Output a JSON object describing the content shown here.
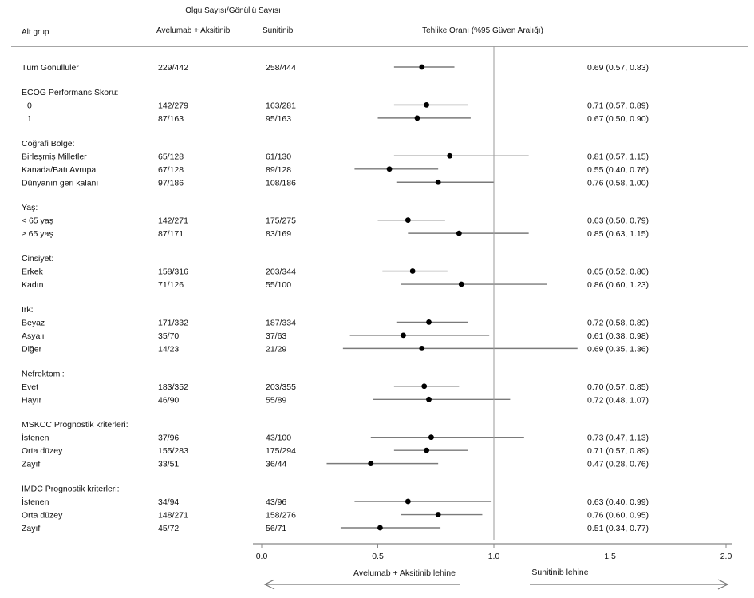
{
  "header": {
    "supertitle": "Olgu Sayısı/Gönüllü Sayısı",
    "col_subgroup": "Alt grup",
    "col_arm1": "Avelumab + Aksitinib",
    "col_arm2": "Sunitinib",
    "col_hr": "Tehlike Oranı (%95 Güven Aralığı)"
  },
  "favor_left": "Avelumab + Aksitinib lehine",
  "favor_right": "Sunitinib lehine",
  "chart_data": {
    "type": "forest",
    "title": "",
    "xlim": [
      0.0,
      2.0
    ],
    "reference_line": 1.0,
    "x_ticks": [
      "0.0",
      "0.5",
      "1.0",
      "1.5",
      "2.0"
    ],
    "x_tick_values": [
      0.0,
      0.5,
      1.0,
      1.5,
      2.0
    ],
    "rows": [
      {
        "kind": "row",
        "label": "Tüm Gönüllüler",
        "arm1": "229/442",
        "arm2": "258/444",
        "hr": 0.69,
        "lo": 0.57,
        "hi": 0.83,
        "text": "0.69 (0.57, 0.83)"
      },
      {
        "kind": "header",
        "label": "ECOG Performans Skoru:"
      },
      {
        "kind": "row",
        "label": "0",
        "indent": true,
        "arm1": "142/279",
        "arm2": "163/281",
        "hr": 0.71,
        "lo": 0.57,
        "hi": 0.89,
        "text": "0.71 (0.57, 0.89)"
      },
      {
        "kind": "row",
        "label": "1",
        "indent": true,
        "arm1": "87/163",
        "arm2": "95/163",
        "hr": 0.67,
        "lo": 0.5,
        "hi": 0.9,
        "text": "0.67 (0.50, 0.90)"
      },
      {
        "kind": "header",
        "label": "Coğrafi Bölge:"
      },
      {
        "kind": "row",
        "label": "Birleşmiş Milletler",
        "arm1": "65/128",
        "arm2": "61/130",
        "hr": 0.81,
        "lo": 0.57,
        "hi": 1.15,
        "text": "0.81 (0.57, 1.15)"
      },
      {
        "kind": "row",
        "label": "Kanada/Batı Avrupa",
        "arm1": "67/128",
        "arm2": "89/128",
        "hr": 0.55,
        "lo": 0.4,
        "hi": 0.76,
        "text": "0.55 (0.40, 0.76)"
      },
      {
        "kind": "row",
        "label": "Dünyanın geri kalanı",
        "arm1": "97/186",
        "arm2": "108/186",
        "hr": 0.76,
        "lo": 0.58,
        "hi": 1.0,
        "text": "0.76 (0.58, 1.00)"
      },
      {
        "kind": "header",
        "label": "Yaş:"
      },
      {
        "kind": "row",
        "label": "< 65 yaş",
        "arm1": "142/271",
        "arm2": "175/275",
        "hr": 0.63,
        "lo": 0.5,
        "hi": 0.79,
        "text": "0.63 (0.50, 0.79)"
      },
      {
        "kind": "row",
        "label": "≥ 65 yaş",
        "arm1": "87/171",
        "arm2": "83/169",
        "hr": 0.85,
        "lo": 0.63,
        "hi": 1.15,
        "text": "0.85 (0.63, 1.15)"
      },
      {
        "kind": "header",
        "label": "Cinsiyet:"
      },
      {
        "kind": "row",
        "label": "Erkek",
        "arm1": "158/316",
        "arm2": "203/344",
        "hr": 0.65,
        "lo": 0.52,
        "hi": 0.8,
        "text": "0.65 (0.52, 0.80)"
      },
      {
        "kind": "row",
        "label": "Kadın",
        "arm1": "71/126",
        "arm2": "55/100",
        "hr": 0.86,
        "lo": 0.6,
        "hi": 1.23,
        "text": "0.86 (0.60, 1.23)"
      },
      {
        "kind": "header",
        "label": "Irk:"
      },
      {
        "kind": "row",
        "label": "Beyaz",
        "arm1": "171/332",
        "arm2": "187/334",
        "hr": 0.72,
        "lo": 0.58,
        "hi": 0.89,
        "text": "0.72 (0.58, 0.89)"
      },
      {
        "kind": "row",
        "label": "Asyalı",
        "arm1": "35/70",
        "arm2": "37/63",
        "hr": 0.61,
        "lo": 0.38,
        "hi": 0.98,
        "text": "0.61 (0.38, 0.98)"
      },
      {
        "kind": "row",
        "label": "Diğer",
        "arm1": "14/23",
        "arm2": "21/29",
        "hr": 0.69,
        "lo": 0.35,
        "hi": 1.36,
        "text": "0.69 (0.35, 1.36)"
      },
      {
        "kind": "header",
        "label": "Nefrektomi:"
      },
      {
        "kind": "row",
        "label": "Evet",
        "arm1": "183/352",
        "arm2": "203/355",
        "hr": 0.7,
        "lo": 0.57,
        "hi": 0.85,
        "text": "0.70 (0.57, 0.85)"
      },
      {
        "kind": "row",
        "label": "Hayır",
        "arm1": "46/90",
        "arm2": "55/89",
        "hr": 0.72,
        "lo": 0.48,
        "hi": 1.07,
        "text": "0.72 (0.48, 1.07)"
      },
      {
        "kind": "header",
        "label": "MSKCC Prognostik kriterleri:"
      },
      {
        "kind": "row",
        "label": "İstenen",
        "arm1": "37/96",
        "arm2": "43/100",
        "hr": 0.73,
        "lo": 0.47,
        "hi": 1.13,
        "text": "0.73 (0.47, 1.13)"
      },
      {
        "kind": "row",
        "label": "Orta düzey",
        "arm1": "155/283",
        "arm2": "175/294",
        "hr": 0.71,
        "lo": 0.57,
        "hi": 0.89,
        "text": "0.71 (0.57, 0.89)"
      },
      {
        "kind": "row",
        "label": "Zayıf",
        "arm1": "33/51",
        "arm2": "36/44",
        "hr": 0.47,
        "lo": 0.28,
        "hi": 0.76,
        "text": "0.47 (0.28, 0.76)"
      },
      {
        "kind": "header",
        "label": "IMDC Prognostik kriterleri:"
      },
      {
        "kind": "row",
        "label": "İstenen",
        "arm1": "34/94",
        "arm2": "43/96",
        "hr": 0.63,
        "lo": 0.4,
        "hi": 0.99,
        "text": "0.63 (0.40, 0.99)"
      },
      {
        "kind": "row",
        "label": "Orta düzey",
        "arm1": "148/271",
        "arm2": "158/276",
        "hr": 0.76,
        "lo": 0.6,
        "hi": 0.95,
        "text": "0.76 (0.60, 0.95)"
      },
      {
        "kind": "row",
        "label": "Zayıf",
        "arm1": "45/72",
        "arm2": "56/71",
        "hr": 0.51,
        "lo": 0.34,
        "hi": 0.77,
        "text": "0.51 (0.34, 0.77)"
      }
    ]
  }
}
